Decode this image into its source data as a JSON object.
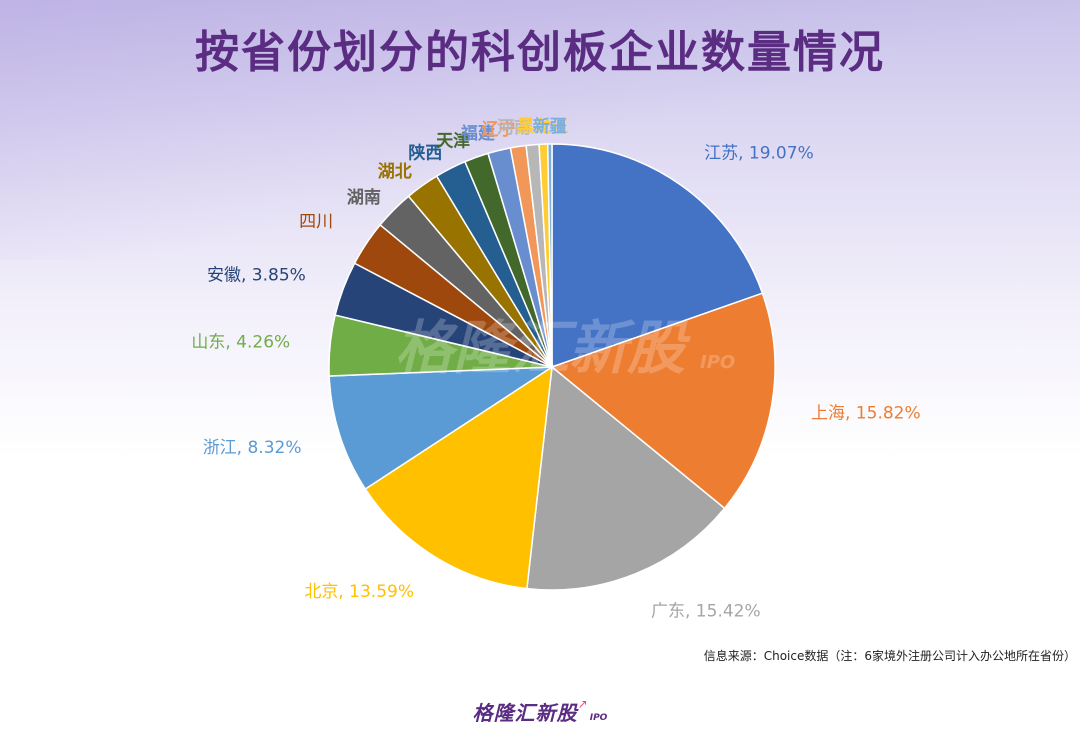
{
  "title": "按省份划分的科创板企业数量情况",
  "source_note": "信息来源：Choice数据（注：6家境外注册公司计入办公地所在省份）",
  "brand": {
    "text": "格隆汇新股",
    "sub": "IPO"
  },
  "watermark": {
    "text": "格隆汇新股",
    "sub": "IPO"
  },
  "colors": {
    "title": "#5b2d82",
    "slices": [
      "#4472c4",
      "#ed7d31",
      "#a5a5a5",
      "#ffc000",
      "#5b9bd5",
      "#70ad47",
      "#264478",
      "#9e480e",
      "#636363",
      "#997300",
      "#255e91",
      "#43682b",
      "#698ed0",
      "#f1975a",
      "#b7b7b7",
      "#ffcd33",
      "#7cafdd"
    ]
  },
  "chart_data": {
    "type": "pie",
    "title": "按省份划分的科创板企业数量情况",
    "slices": [
      {
        "label": "江苏",
        "value": 19.07,
        "pct_label": "19.07%"
      },
      {
        "label": "上海",
        "value": 15.82,
        "pct_label": "15.82%"
      },
      {
        "label": "广东",
        "value": 15.42,
        "pct_label": "15.42%"
      },
      {
        "label": "北京",
        "value": 13.59,
        "pct_label": "13.59%"
      },
      {
        "label": "浙江",
        "value": 8.32,
        "pct_label": "8.32%"
      },
      {
        "label": "山东",
        "value": 4.26,
        "pct_label": "4.26%"
      },
      {
        "label": "安徽",
        "value": 3.85,
        "pct_label": "3.85%"
      },
      {
        "label": "四川",
        "value": 3.2
      },
      {
        "label": "湖南",
        "value": 2.8
      },
      {
        "label": "湖北",
        "value": 2.4
      },
      {
        "label": "陕西",
        "value": 2.2
      },
      {
        "label": "天津",
        "value": 1.7
      },
      {
        "label": "福建",
        "value": 1.6
      },
      {
        "label": "辽宁",
        "value": 1.1
      },
      {
        "label": "河南",
        "value": 0.9
      },
      {
        "label": "黑龙江",
        "value": 0.6
      },
      {
        "label": "新疆",
        "value": 0.3
      }
    ]
  }
}
